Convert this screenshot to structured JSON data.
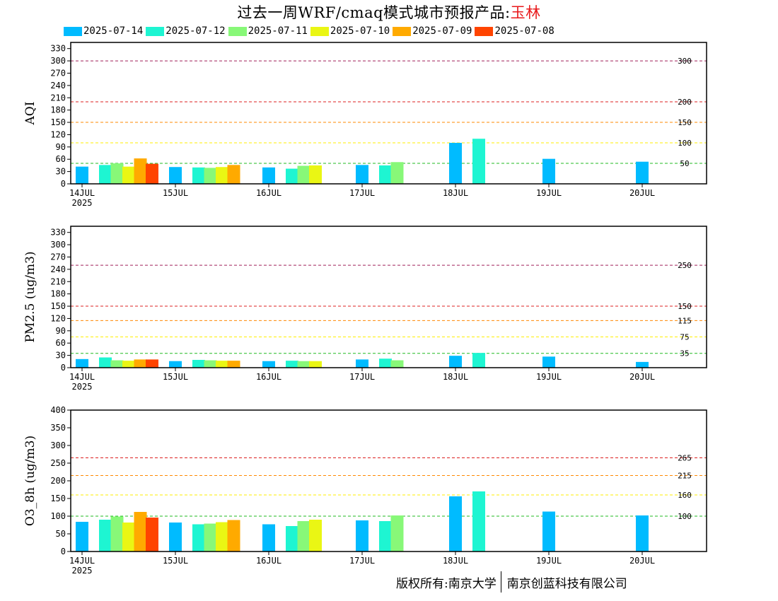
{
  "title": {
    "main": "过去一周WRF/cmaq模式城市预报产品:",
    "city": "玉林"
  },
  "legend": [
    {
      "label": "2025-07-14",
      "color": "#00bbff"
    },
    {
      "label": "2025-07-12",
      "color": "#1ef5d2"
    },
    {
      "label": "2025-07-11",
      "color": "#88f878"
    },
    {
      "label": "2025-07-10",
      "color": "#eaf614"
    },
    {
      "label": "2025-07-09",
      "color": "#ffaa00"
    },
    {
      "label": "2025-07-08",
      "color": "#ff4400"
    }
  ],
  "copyright": {
    "left": "版权所有:南京大学",
    "right": "南京创蓝科技有限公司"
  },
  "chart_data": [
    {
      "type": "bar",
      "ylabel": "AQI",
      "ylim": [
        0,
        345
      ],
      "yticks": [
        0,
        30,
        60,
        90,
        120,
        150,
        180,
        210,
        240,
        270,
        300,
        330
      ],
      "x_tick_labels": [
        "14JUL",
        "15JUL",
        "16JUL",
        "17JUL",
        "18JUL",
        "19JUL",
        "20JUL"
      ],
      "year_label": "2025",
      "thresholds": [
        {
          "value": 300,
          "label": "300",
          "color": "#a0205a"
        },
        {
          "value": 200,
          "label": "200",
          "color": "#dd2020"
        },
        {
          "value": 150,
          "label": "150",
          "color": "#ff8800"
        },
        {
          "value": 100,
          "label": "100",
          "color": "#ffee00"
        },
        {
          "value": 50,
          "label": "50",
          "color": "#22bb22"
        }
      ],
      "series": [
        {
          "name": "2025-07-14",
          "points": [
            [
              0,
              42
            ],
            [
              1,
              41
            ],
            [
              2,
              40
            ],
            [
              3,
              46
            ],
            [
              4,
              100
            ],
            [
              5,
              61
            ],
            [
              6,
              54
            ]
          ]
        },
        {
          "name": "2025-07-12",
          "points": [
            [
              0.25,
              46
            ],
            [
              1.25,
              40
            ],
            [
              2.25,
              37
            ],
            [
              3.25,
              45
            ],
            [
              4.25,
              110
            ]
          ]
        },
        {
          "name": "2025-07-11",
          "points": [
            [
              0.375,
              50
            ],
            [
              1.375,
              39
            ],
            [
              2.375,
              44
            ],
            [
              3.375,
              53
            ]
          ]
        },
        {
          "name": "2025-07-10",
          "points": [
            [
              0.5,
              42
            ],
            [
              1.5,
              41
            ],
            [
              2.5,
              45
            ]
          ]
        },
        {
          "name": "2025-07-09",
          "points": [
            [
              0.625,
              62
            ],
            [
              1.625,
              46
            ]
          ]
        },
        {
          "name": "2025-07-08",
          "points": [
            [
              0.75,
              49
            ]
          ]
        }
      ]
    },
    {
      "type": "bar",
      "ylabel": "PM2.5 (ug/m3)",
      "ylim": [
        0,
        345
      ],
      "yticks": [
        0,
        30,
        60,
        90,
        120,
        150,
        180,
        210,
        240,
        270,
        300,
        330
      ],
      "x_tick_labels": [
        "14JUL",
        "15JUL",
        "16JUL",
        "17JUL",
        "18JUL",
        "19JUL",
        "20JUL"
      ],
      "year_label": "2025",
      "thresholds": [
        {
          "value": 250,
          "label": "250",
          "color": "#a0205a"
        },
        {
          "value": 150,
          "label": "150",
          "color": "#dd2020"
        },
        {
          "value": 115,
          "label": "115",
          "color": "#ff8800"
        },
        {
          "value": 75,
          "label": "75",
          "color": "#ffee00"
        },
        {
          "value": 35,
          "label": "35",
          "color": "#22bb22"
        }
      ],
      "series": [
        {
          "name": "2025-07-14",
          "points": [
            [
              0,
              21
            ],
            [
              1,
              16
            ],
            [
              2,
              16
            ],
            [
              3,
              20
            ],
            [
              4,
              29
            ],
            [
              5,
              27
            ],
            [
              6,
              14
            ]
          ]
        },
        {
          "name": "2025-07-12",
          "points": [
            [
              0.25,
              25
            ],
            [
              1.25,
              19
            ],
            [
              2.25,
              17
            ],
            [
              3.25,
              22
            ],
            [
              4.25,
              36
            ]
          ]
        },
        {
          "name": "2025-07-11",
          "points": [
            [
              0.375,
              18
            ],
            [
              1.375,
              18
            ],
            [
              2.375,
              16
            ],
            [
              3.375,
              18
            ]
          ]
        },
        {
          "name": "2025-07-10",
          "points": [
            [
              0.5,
              17
            ],
            [
              1.5,
              17
            ],
            [
              2.5,
              16
            ]
          ]
        },
        {
          "name": "2025-07-09",
          "points": [
            [
              0.625,
              20
            ],
            [
              1.625,
              17
            ]
          ]
        },
        {
          "name": "2025-07-08",
          "points": [
            [
              0.75,
              20
            ]
          ]
        }
      ]
    },
    {
      "type": "bar",
      "ylabel": "O3_8h (ug/m3)",
      "ylim": [
        0,
        400
      ],
      "yticks": [
        0,
        50,
        100,
        150,
        200,
        250,
        300,
        350,
        400
      ],
      "x_tick_labels": [
        "14JUL",
        "15JUL",
        "16JUL",
        "17JUL",
        "18JUL",
        "19JUL",
        "20JUL"
      ],
      "year_label": "2025",
      "thresholds": [
        {
          "value": 265,
          "label": "265",
          "color": "#dd2020"
        },
        {
          "value": 215,
          "label": "215",
          "color": "#ff8800"
        },
        {
          "value": 160,
          "label": "160",
          "color": "#ffee00"
        },
        {
          "value": 100,
          "label": "100",
          "color": "#22bb22"
        }
      ],
      "series": [
        {
          "name": "2025-07-14",
          "points": [
            [
              0,
              84
            ],
            [
              1,
              82
            ],
            [
              2,
              77
            ],
            [
              3,
              88
            ],
            [
              4,
              156
            ],
            [
              5,
              113
            ],
            [
              6,
              102
            ]
          ]
        },
        {
          "name": "2025-07-12",
          "points": [
            [
              0.25,
              90
            ],
            [
              1.25,
              77
            ],
            [
              2.25,
              72
            ],
            [
              3.25,
              86
            ],
            [
              4.25,
              170
            ]
          ]
        },
        {
          "name": "2025-07-11",
          "points": [
            [
              0.375,
              99
            ],
            [
              1.375,
              79
            ],
            [
              2.375,
              86
            ],
            [
              3.375,
              102
            ]
          ]
        },
        {
          "name": "2025-07-10",
          "points": [
            [
              0.5,
              82
            ],
            [
              1.5,
              83
            ],
            [
              2.5,
              90
            ]
          ]
        },
        {
          "name": "2025-07-09",
          "points": [
            [
              0.625,
              112
            ],
            [
              1.625,
              89
            ]
          ]
        },
        {
          "name": "2025-07-08",
          "points": [
            [
              0.75,
              96
            ]
          ]
        }
      ]
    }
  ]
}
